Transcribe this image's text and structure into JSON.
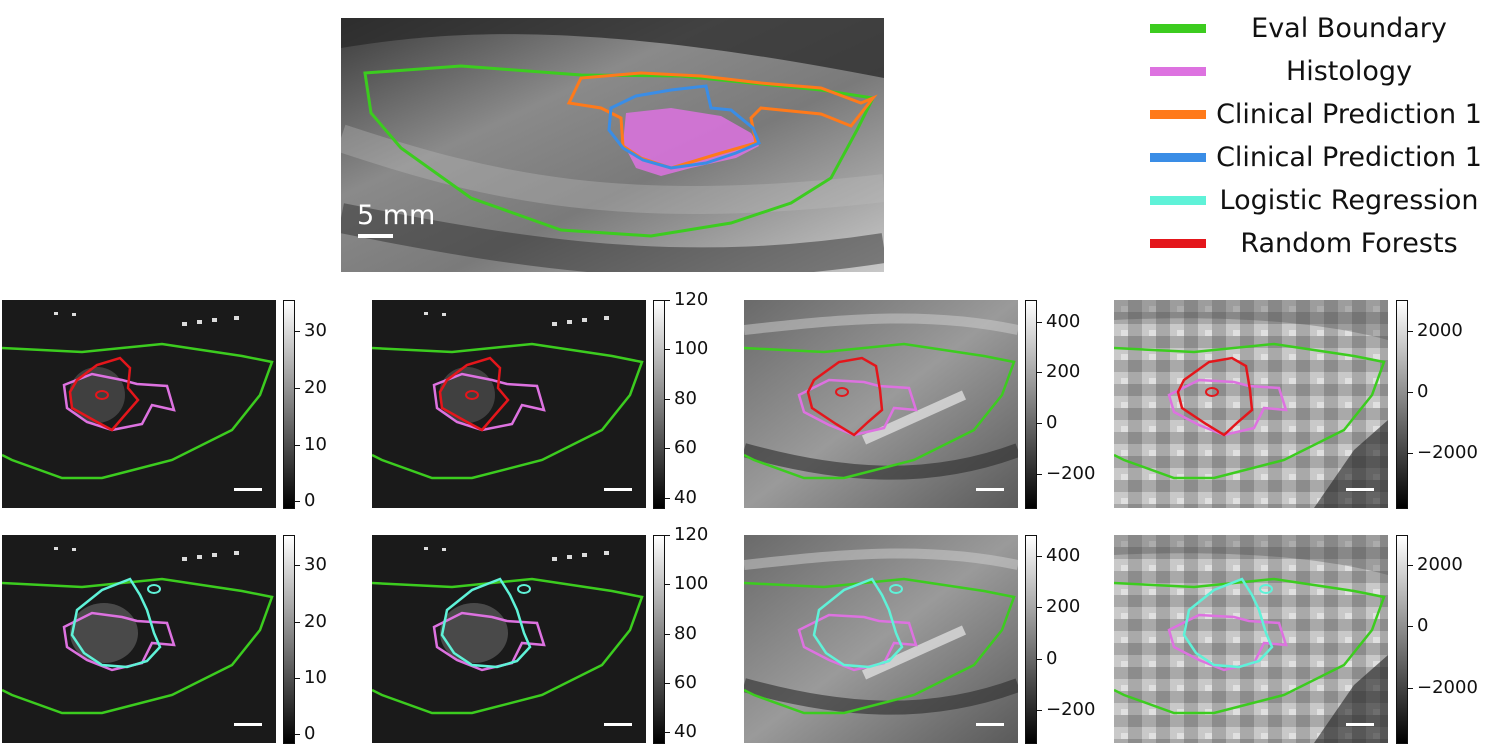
{
  "main_panel": {
    "scale_label": "5 mm"
  },
  "legend": [
    {
      "label": "Eval Boundary",
      "color": "#3ccc1f"
    },
    {
      "label": "Histology",
      "color": "#dd72e0"
    },
    {
      "label": "Clinical Prediction 1",
      "color": "#ff7a1a"
    },
    {
      "label": "Clinical Prediction 1",
      "color": "#3a8de6"
    },
    {
      "label": "Logistic Regression",
      "color": "#5ff2d8"
    },
    {
      "label": "Random Forests",
      "color": "#e4161b"
    }
  ],
  "colorbars": [
    {
      "ticks": [
        "30",
        "20",
        "10",
        "0"
      ]
    },
    {
      "ticks": [
        "120",
        "100",
        "80",
        "60",
        "40"
      ]
    },
    {
      "ticks": [
        "400",
        "200",
        "0",
        "−200"
      ]
    },
    {
      "ticks": [
        "2000",
        "0",
        "−2000"
      ]
    }
  ]
}
